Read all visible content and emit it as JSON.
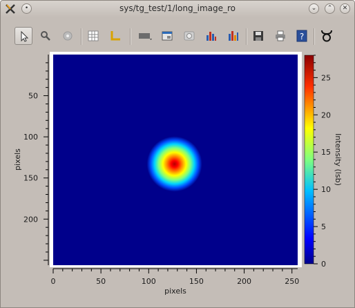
{
  "window": {
    "title": "sys/tg_test/1/long_image_ro"
  },
  "toolbar": {
    "tools": [
      "select-icon",
      "zoom-icon",
      "pan-icon",
      "grid-icon",
      "axes-icon",
      "colormap-icon",
      "snapshot-icon",
      "info-icon",
      "histogram-icon",
      "image-stats-icon",
      "save-icon",
      "print-icon",
      "help-icon",
      "taurus-icon"
    ]
  },
  "plot": {
    "xlabel": "pixels",
    "ylabel": "pixels",
    "x_ticks": [
      "0",
      "50",
      "100",
      "150",
      "200",
      "250"
    ],
    "y_ticks": [
      "50",
      "100",
      "150",
      "200"
    ],
    "colorbar_label": "Intensity (lsb)",
    "colorbar_ticks": [
      "0",
      "5",
      "10",
      "15",
      "20",
      "25"
    ]
  },
  "chart_data": {
    "type": "heatmap",
    "xlabel": "pixels",
    "ylabel": "pixels",
    "xlim": [
      0,
      256
    ],
    "ylim": [
      0,
      256
    ],
    "colorbar_range": [
      0,
      28
    ],
    "blob": {
      "center_x": 127,
      "center_y": 133,
      "peak": 28
    },
    "colors": {
      "background": "#00008b",
      "frame": "#ffffff"
    }
  }
}
